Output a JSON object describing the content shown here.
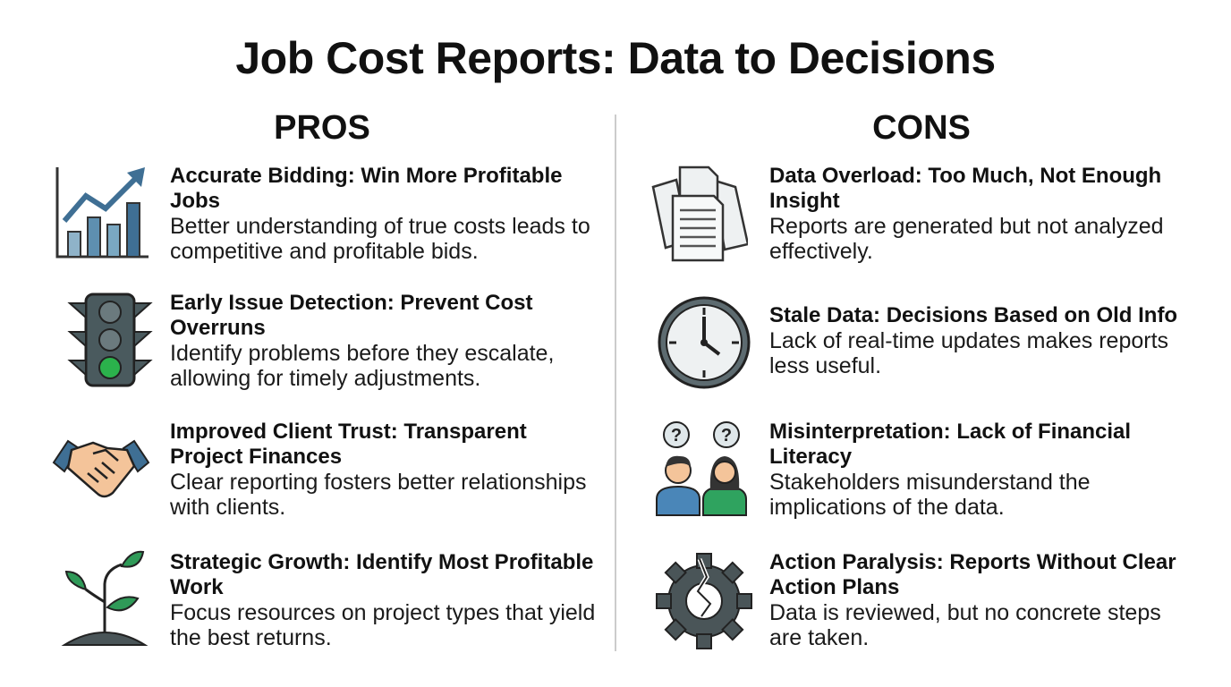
{
  "title": "Job Cost Reports: Data to Decisions",
  "pros": {
    "heading": "PROS",
    "items": [
      {
        "title": "Accurate Bidding: Win More Profitable Jobs",
        "text": "Better understanding of true costs leads to competitive and profitable bids."
      },
      {
        "title": "Early Issue Detection: Prevent Cost Overruns",
        "text": "Identify problems before they escalate, allowing for timely adjustments."
      },
      {
        "title": "Improved Client Trust: Transparent Project Finances",
        "text": "Clear reporting fosters better relationships with clients."
      },
      {
        "title": "Strategic Growth: Identify Most Profitable Work",
        "text": "Focus resources on project types that yield the best returns."
      }
    ]
  },
  "cons": {
    "heading": "CONS",
    "items": [
      {
        "title": "Data Overload: Too Much, Not Enough Insight",
        "text": "Reports are generated but not analyzed effectively."
      },
      {
        "title": "Stale Data: Decisions Based on Old Info",
        "text": "Lack of real-time updates makes reports less useful."
      },
      {
        "title": "Misinterpretation: Lack of Financial Literacy",
        "text": "Stakeholders misunderstand the implications of the data."
      },
      {
        "title": "Action Paralysis: Reports Without Clear Action Plans",
        "text": "Data is reviewed, but no concrete steps are taken."
      }
    ]
  }
}
